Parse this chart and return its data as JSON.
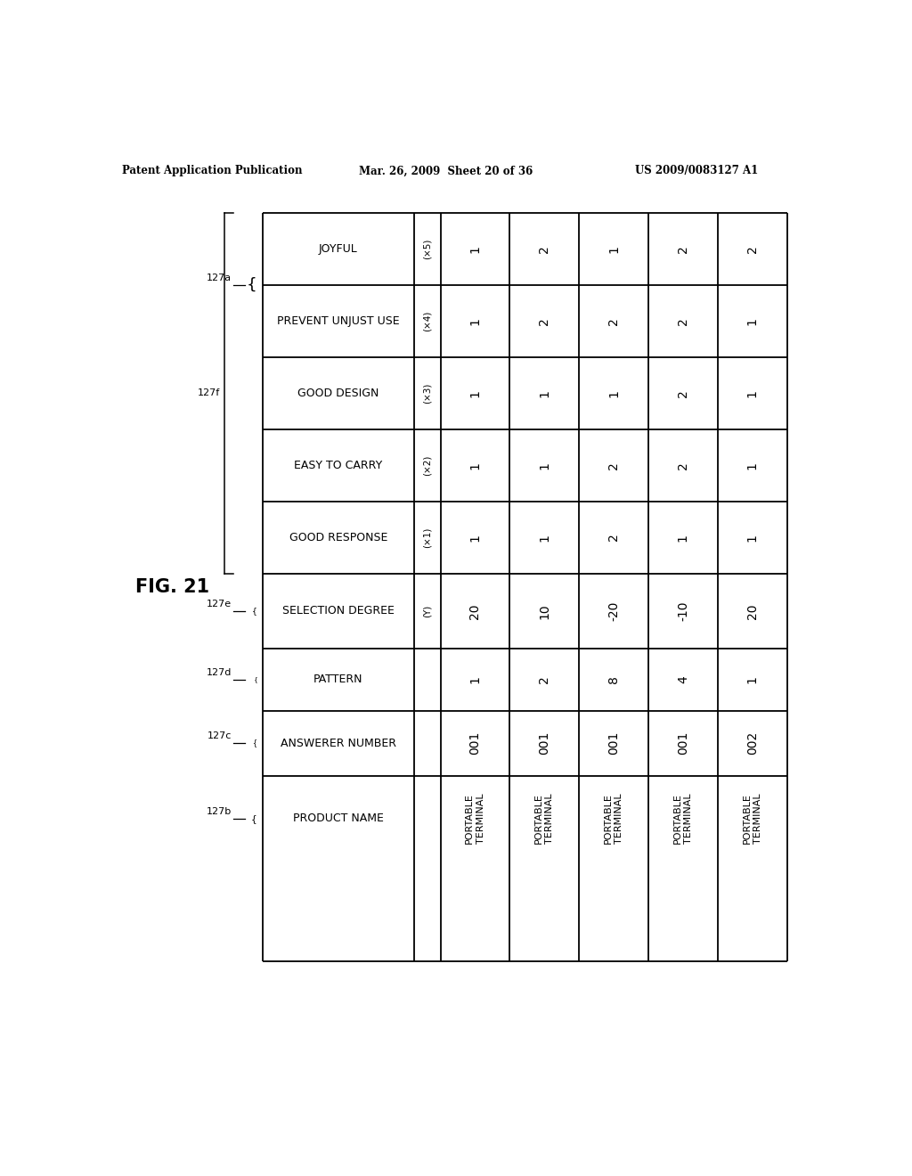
{
  "header_text": [
    "Patent Application Publication",
    "Mar. 26, 2009  Sheet 20 of 36",
    "US 2009/0083127 A1"
  ],
  "fig_label": "FIG. 21",
  "row_labels": [
    "JOYFUL",
    "PREVENT UNJUST USE",
    "GOOD DESIGN",
    "EASY TO CARRY",
    "GOOD RESPONSE",
    "SELECTION DEGREE",
    "PATTERN",
    "ANSWERER NUMBER",
    "PRODUCT NAME"
  ],
  "row_sublabels": [
    "(×5)",
    "(×4)",
    "(×3)",
    "(×2)",
    "(×1)",
    "(Y)",
    "",
    "",
    ""
  ],
  "col_data": [
    [
      "1",
      "1",
      "1",
      "1",
      "1",
      "20",
      "1",
      "001",
      "PORTABLE\nTERMINAL"
    ],
    [
      "2",
      "2",
      "1",
      "1",
      "1",
      "10",
      "2",
      "001",
      "PORTABLE\nTERMINAL"
    ],
    [
      "1",
      "2",
      "1",
      "2",
      "2",
      "-20",
      "8",
      "001",
      "PORTABLE\nTERMINAL"
    ],
    [
      "2",
      "2",
      "2",
      "2",
      "1",
      "-10",
      "4",
      "001",
      "PORTABLE\nTERMINAL"
    ],
    [
      "2",
      "1",
      "1",
      "1",
      "1",
      "20",
      "1",
      "002",
      "PORTABLE\nTERMINAL"
    ]
  ],
  "bg_color": "#ffffff",
  "text_color": "#000000",
  "line_color": "#000000"
}
